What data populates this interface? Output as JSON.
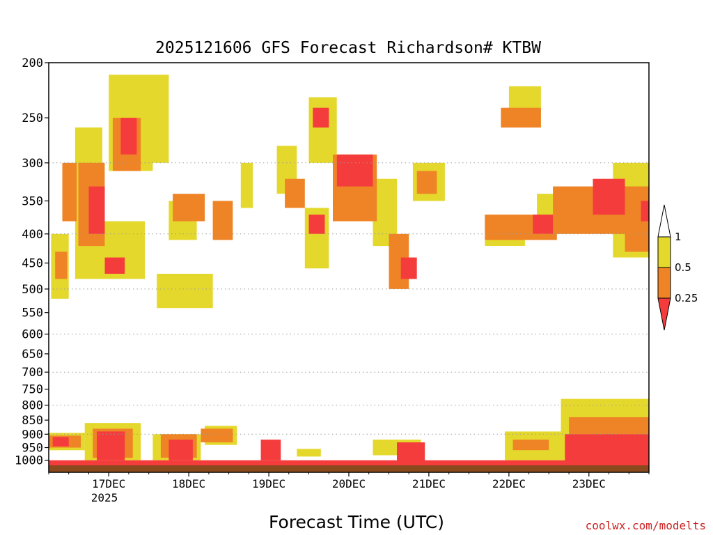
{
  "chart_data": {
    "type": "heatmap",
    "title": "2025121606 GFS Forecast Richardson# KTBW",
    "xlabel": "Forecast Time (UTC)",
    "ylabel": "",
    "x_ticks": [
      "17DEC",
      "18DEC",
      "19DEC",
      "20DEC",
      "21DEC",
      "22DEC",
      "23DEC"
    ],
    "x_year_label": "2025",
    "x_range_days": [
      16.25,
      23.75
    ],
    "y_ticks": [
      200,
      250,
      300,
      350,
      400,
      450,
      500,
      550,
      600,
      650,
      700,
      750,
      800,
      850,
      900,
      950,
      1000
    ],
    "y_range_hpa": [
      200,
      1050
    ],
    "y_scale": "log-pressure (inverted)",
    "grid": "dotted horizontal at 300, 400, 500, 600, 700, 800, 900",
    "legend": {
      "placement": "right",
      "labels": [
        "1",
        "0.5",
        "0.25"
      ],
      "bins": [
        {
          "range": "0.5-1",
          "color": "#e5d82c"
        },
        {
          "range": "0.25-0.5",
          "color": "#ee8426"
        },
        {
          "range": "<0.25",
          "color": "#f53c3c"
        }
      ]
    },
    "colors": {
      "high": "#e5d82c",
      "mid": "#ee8426",
      "low": "#f53c3c",
      "ground": "#8b4a1e"
    },
    "regions": [
      {
        "level": "high",
        "x": [
          16.58,
          16.92
        ],
        "p": [
          260,
          480
        ]
      },
      {
        "level": "mid",
        "x": [
          16.62,
          16.95
        ],
        "p": [
          300,
          420
        ]
      },
      {
        "level": "low",
        "x": [
          16.75,
          16.95
        ],
        "p": [
          330,
          400
        ]
      },
      {
        "level": "mid",
        "x": [
          16.42,
          16.6
        ],
        "p": [
          300,
          380
        ]
      },
      {
        "level": "high",
        "x": [
          16.28,
          16.5
        ],
        "p": [
          400,
          520
        ]
      },
      {
        "level": "mid",
        "x": [
          16.33,
          16.48
        ],
        "p": [
          430,
          480
        ]
      },
      {
        "level": "high",
        "x": [
          17.0,
          17.55
        ],
        "p": [
          210,
          310
        ]
      },
      {
        "level": "mid",
        "x": [
          17.05,
          17.4
        ],
        "p": [
          250,
          310
        ]
      },
      {
        "level": "low",
        "x": [
          17.15,
          17.35
        ],
        "p": [
          250,
          290
        ]
      },
      {
        "level": "high",
        "x": [
          16.85,
          17.45
        ],
        "p": [
          380,
          480
        ]
      },
      {
        "level": "low",
        "x": [
          16.95,
          17.2
        ],
        "p": [
          440,
          470
        ]
      },
      {
        "level": "high",
        "x": [
          17.5,
          17.75
        ],
        "p": [
          210,
          300
        ]
      },
      {
        "level": "high",
        "x": [
          17.75,
          18.1
        ],
        "p": [
          350,
          410
        ]
      },
      {
        "level": "mid",
        "x": [
          17.8,
          18.2
        ],
        "p": [
          340,
          380
        ]
      },
      {
        "level": "high",
        "x": [
          17.6,
          18.3
        ],
        "p": [
          470,
          540
        ]
      },
      {
        "level": "mid",
        "x": [
          18.3,
          18.55
        ],
        "p": [
          350,
          410
        ]
      },
      {
        "level": "high",
        "x": [
          18.65,
          18.8
        ],
        "p": [
          300,
          360
        ]
      },
      {
        "level": "high",
        "x": [
          19.1,
          19.35
        ],
        "p": [
          280,
          340
        ]
      },
      {
        "level": "mid",
        "x": [
          19.2,
          19.45
        ],
        "p": [
          320,
          360
        ]
      },
      {
        "level": "high",
        "x": [
          19.5,
          19.85
        ],
        "p": [
          230,
          300
        ]
      },
      {
        "level": "low",
        "x": [
          19.55,
          19.75
        ],
        "p": [
          240,
          260
        ]
      },
      {
        "level": "high",
        "x": [
          19.45,
          19.75
        ],
        "p": [
          360,
          460
        ]
      },
      {
        "level": "low",
        "x": [
          19.5,
          19.7
        ],
        "p": [
          370,
          400
        ]
      },
      {
        "level": "mid",
        "x": [
          19.8,
          20.35
        ],
        "p": [
          290,
          380
        ]
      },
      {
        "level": "low",
        "x": [
          19.85,
          20.3
        ],
        "p": [
          290,
          330
        ]
      },
      {
        "level": "high",
        "x": [
          20.3,
          20.6
        ],
        "p": [
          320,
          420
        ]
      },
      {
        "level": "mid",
        "x": [
          20.5,
          20.75
        ],
        "p": [
          400,
          500
        ]
      },
      {
        "level": "low",
        "x": [
          20.65,
          20.85
        ],
        "p": [
          440,
          480
        ]
      },
      {
        "level": "high",
        "x": [
          20.8,
          21.2
        ],
        "p": [
          300,
          350
        ]
      },
      {
        "level": "mid",
        "x": [
          20.85,
          21.1
        ],
        "p": [
          310,
          340
        ]
      },
      {
        "level": "mid",
        "x": [
          21.9,
          22.4
        ],
        "p": [
          240,
          260
        ]
      },
      {
        "level": "high",
        "x": [
          22.0,
          22.4
        ],
        "p": [
          220,
          260
        ]
      },
      {
        "level": "high",
        "x": [
          21.7,
          22.2
        ],
        "p": [
          370,
          420
        ]
      },
      {
        "level": "mid",
        "x": [
          21.7,
          22.6
        ],
        "p": [
          370,
          410
        ]
      },
      {
        "level": "low",
        "x": [
          22.3,
          22.55
        ],
        "p": [
          370,
          400
        ]
      },
      {
        "level": "high",
        "x": [
          22.35,
          22.7
        ],
        "p": [
          340,
          400
        ]
      },
      {
        "level": "mid",
        "x": [
          22.55,
          23.5
        ],
        "p": [
          330,
          400
        ]
      },
      {
        "level": "low",
        "x": [
          23.05,
          23.45
        ],
        "p": [
          320,
          370
        ]
      },
      {
        "level": "high",
        "x": [
          23.3,
          23.75
        ],
        "p": [
          300,
          440
        ]
      },
      {
        "level": "mid",
        "x": [
          23.45,
          23.75
        ],
        "p": [
          330,
          430
        ]
      },
      {
        "level": "low",
        "x": [
          23.65,
          23.75
        ],
        "p": [
          350,
          380
        ]
      },
      {
        "level": "high",
        "x": [
          16.25,
          16.7
        ],
        "p": [
          895,
          960
        ]
      },
      {
        "level": "mid",
        "x": [
          16.25,
          16.65
        ],
        "p": [
          905,
          950
        ]
      },
      {
        "level": "low",
        "x": [
          16.3,
          16.5
        ],
        "p": [
          910,
          945
        ]
      },
      {
        "level": "high",
        "x": [
          16.7,
          17.4
        ],
        "p": [
          860,
          1000
        ]
      },
      {
        "level": "mid",
        "x": [
          16.8,
          17.3
        ],
        "p": [
          880,
          990
        ]
      },
      {
        "level": "low",
        "x": [
          16.85,
          17.2
        ],
        "p": [
          890,
          1000
        ]
      },
      {
        "level": "high",
        "x": [
          17.55,
          18.15
        ],
        "p": [
          900,
          1000
        ]
      },
      {
        "level": "mid",
        "x": [
          17.65,
          18.1
        ],
        "p": [
          900,
          990
        ]
      },
      {
        "level": "low",
        "x": [
          17.75,
          18.05
        ],
        "p": [
          920,
          1000
        ]
      },
      {
        "level": "mid",
        "x": [
          18.15,
          18.55
        ],
        "p": [
          880,
          930
        ]
      },
      {
        "level": "high",
        "x": [
          18.2,
          18.6
        ],
        "p": [
          870,
          940
        ]
      },
      {
        "level": "low",
        "x": [
          18.9,
          19.15
        ],
        "p": [
          920,
          1000
        ]
      },
      {
        "level": "high",
        "x": [
          19.35,
          19.65
        ],
        "p": [
          955,
          985
        ]
      },
      {
        "level": "high",
        "x": [
          20.3,
          20.9
        ],
        "p": [
          920,
          980
        ]
      },
      {
        "level": "low",
        "x": [
          20.6,
          20.95
        ],
        "p": [
          930,
          1010
        ]
      },
      {
        "level": "high",
        "x": [
          21.95,
          22.7
        ],
        "p": [
          890,
          1000
        ]
      },
      {
        "level": "mid",
        "x": [
          22.05,
          22.5
        ],
        "p": [
          920,
          960
        ]
      },
      {
        "level": "high",
        "x": [
          22.65,
          23.75
        ],
        "p": [
          780,
          990
        ]
      },
      {
        "level": "mid",
        "x": [
          22.75,
          23.75
        ],
        "p": [
          840,
          1000
        ]
      },
      {
        "level": "low",
        "x": [
          22.7,
          23.75
        ],
        "p": [
          900,
          1010
        ]
      },
      {
        "level": "low",
        "x": [
          16.25,
          23.75
        ],
        "p": [
          1000,
          1030
        ]
      }
    ]
  },
  "footer": {
    "credit": "coolwx.com/modelts"
  }
}
